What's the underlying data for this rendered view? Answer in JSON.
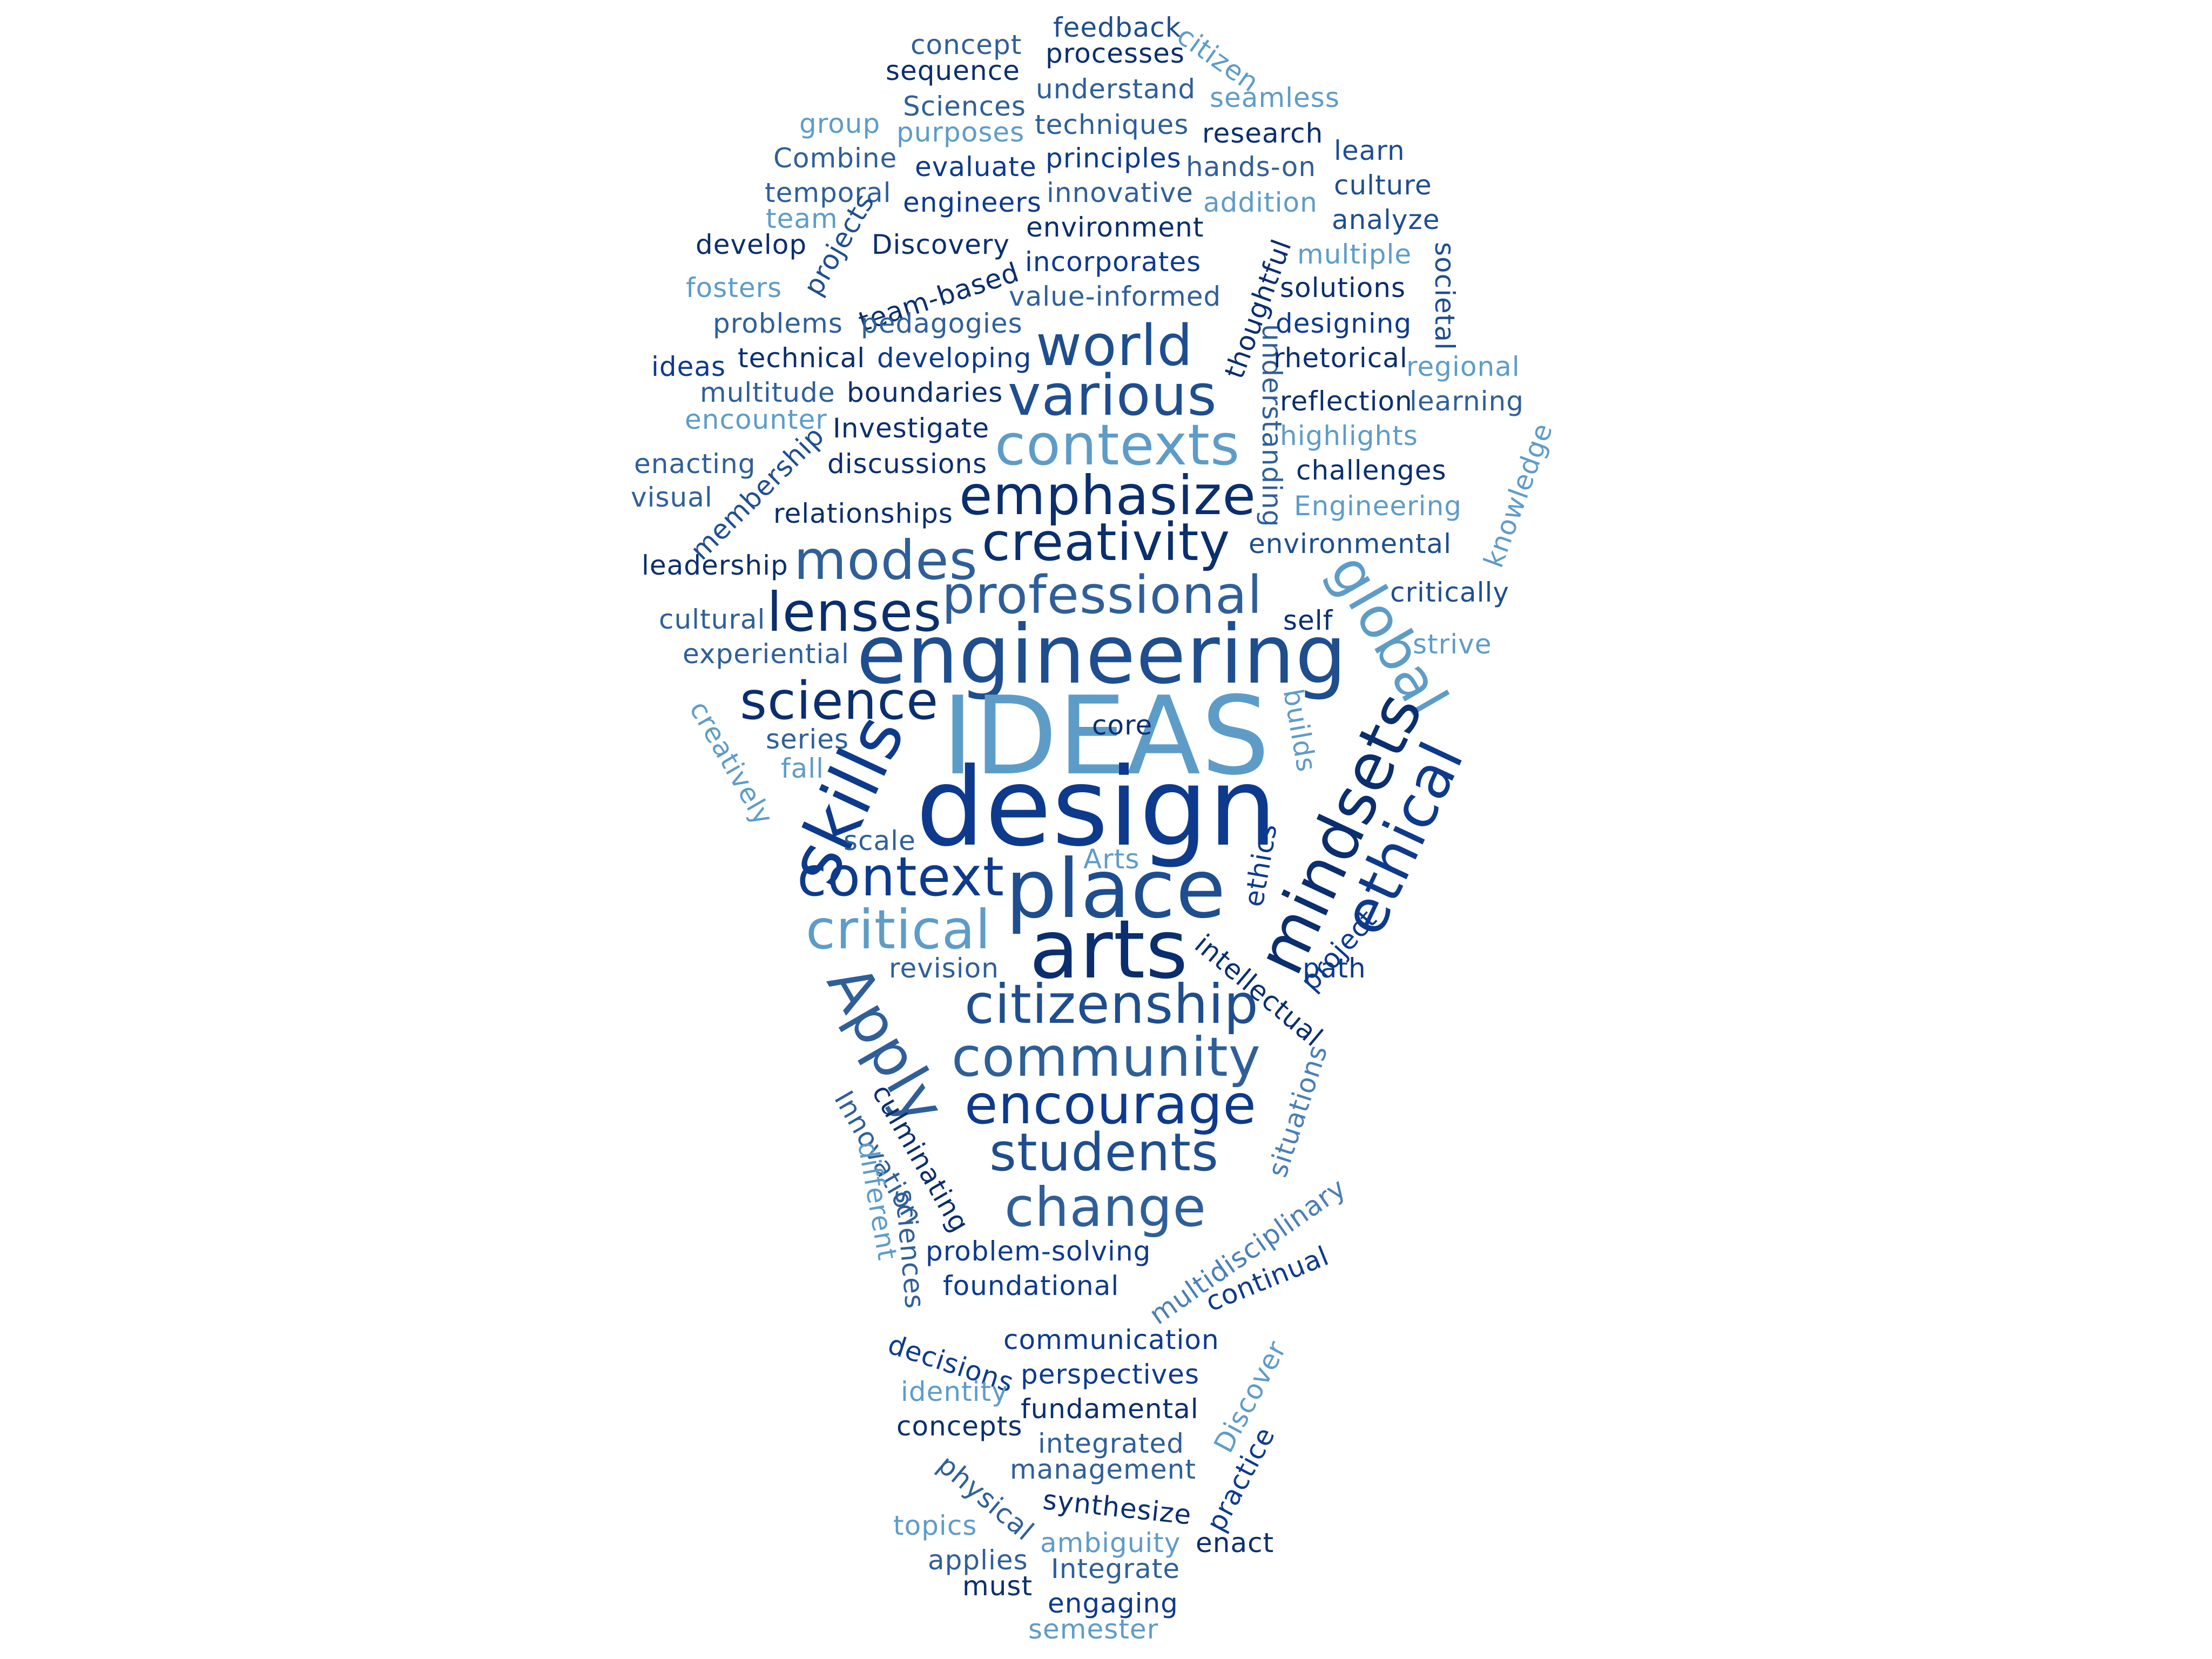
{
  "colors": {
    "c1": "#0a2e6e",
    "c2": "#0d3a8c",
    "c3": "#1f4e8f",
    "c4": "#2f5f99",
    "c5": "#4a7fb5",
    "c6": "#5e9cc8"
  },
  "words": [
    {
      "text": "concept",
      "color": "c4",
      "size": "s"
    },
    {
      "text": "feedback",
      "color": "c3",
      "size": "s"
    },
    {
      "text": "citizen",
      "color": "c6",
      "size": "s"
    },
    {
      "text": "sequence",
      "color": "c1",
      "size": "s"
    },
    {
      "text": "processes",
      "color": "c1",
      "size": "s"
    },
    {
      "text": "understand",
      "color": "c4",
      "size": "s"
    },
    {
      "text": "Sciences",
      "color": "c4",
      "size": "s"
    },
    {
      "text": "seamless",
      "color": "c6",
      "size": "s"
    },
    {
      "text": "group",
      "color": "c6",
      "size": "s"
    },
    {
      "text": "purposes",
      "color": "c6",
      "size": "s"
    },
    {
      "text": "techniques",
      "color": "c4",
      "size": "s"
    },
    {
      "text": "research",
      "color": "c1",
      "size": "s"
    },
    {
      "text": "Combine",
      "color": "c4",
      "size": "s"
    },
    {
      "text": "evaluate",
      "color": "c2",
      "size": "s"
    },
    {
      "text": "principles",
      "color": "c2",
      "size": "s"
    },
    {
      "text": "learn",
      "color": "c3",
      "size": "s"
    },
    {
      "text": "hands-on",
      "color": "c4",
      "size": "s"
    },
    {
      "text": "temporal",
      "color": "c4",
      "size": "s"
    },
    {
      "text": "engineers",
      "color": "c2",
      "size": "s"
    },
    {
      "text": "innovative",
      "color": "c4",
      "size": "s"
    },
    {
      "text": "culture",
      "color": "c3",
      "size": "s"
    },
    {
      "text": "addition",
      "color": "c6",
      "size": "s"
    },
    {
      "text": "team",
      "color": "c6",
      "size": "s"
    },
    {
      "text": "environment",
      "color": "c1",
      "size": "s"
    },
    {
      "text": "analyze",
      "color": "c3",
      "size": "s"
    },
    {
      "text": "develop",
      "color": "c1",
      "size": "s"
    },
    {
      "text": "projects",
      "color": "c3",
      "size": "s"
    },
    {
      "text": "Discovery",
      "color": "c1",
      "size": "s"
    },
    {
      "text": "incorporates",
      "color": "c2",
      "size": "s"
    },
    {
      "text": "multiple",
      "color": "c6",
      "size": "s"
    },
    {
      "text": "fosters",
      "color": "c6",
      "size": "s"
    },
    {
      "text": "team-based",
      "color": "c1",
      "size": "s"
    },
    {
      "text": "value-informed",
      "color": "c4",
      "size": "s"
    },
    {
      "text": "solutions",
      "color": "c1",
      "size": "s"
    },
    {
      "text": "societal",
      "color": "c3",
      "size": "s"
    },
    {
      "text": "thoughtful",
      "color": "c1",
      "size": "s"
    },
    {
      "text": "problems",
      "color": "c4",
      "size": "s"
    },
    {
      "text": "pedagogies",
      "color": "c4",
      "size": "s"
    },
    {
      "text": "designing",
      "color": "c2",
      "size": "s"
    },
    {
      "text": "world",
      "color": "c3",
      "size": "l"
    },
    {
      "text": "understanding",
      "color": "c4",
      "size": "s"
    },
    {
      "text": "ideas",
      "color": "c2",
      "size": "s"
    },
    {
      "text": "technical",
      "color": "c1",
      "size": "s"
    },
    {
      "text": "developing",
      "color": "c2",
      "size": "s"
    },
    {
      "text": "rhetorical",
      "color": "c1",
      "size": "s"
    },
    {
      "text": "regional",
      "color": "c6",
      "size": "s"
    },
    {
      "text": "multitude",
      "color": "c4",
      "size": "s"
    },
    {
      "text": "boundaries",
      "color": "c1",
      "size": "s"
    },
    {
      "text": "various",
      "color": "c3",
      "size": "l"
    },
    {
      "text": "reflection",
      "color": "c1",
      "size": "s"
    },
    {
      "text": "learning",
      "color": "c4",
      "size": "s"
    },
    {
      "text": "encounter",
      "color": "c6",
      "size": "s"
    },
    {
      "text": "Investigate",
      "color": "c1",
      "size": "s"
    },
    {
      "text": "highlights",
      "color": "c6",
      "size": "s"
    },
    {
      "text": "knowledge",
      "color": "c6",
      "size": "s"
    },
    {
      "text": "contexts",
      "color": "c6",
      "size": "l"
    },
    {
      "text": "enacting",
      "color": "c4",
      "size": "s"
    },
    {
      "text": "membership",
      "color": "c3",
      "size": "s"
    },
    {
      "text": "discussions",
      "color": "c1",
      "size": "s"
    },
    {
      "text": "challenges",
      "color": "c1",
      "size": "s"
    },
    {
      "text": "visual",
      "color": "c4",
      "size": "s"
    },
    {
      "text": "emphasize",
      "color": "c1",
      "size": "l"
    },
    {
      "text": "Engineering",
      "color": "c6",
      "size": "s"
    },
    {
      "text": "relationships",
      "color": "c1",
      "size": "s"
    },
    {
      "text": "creativity",
      "color": "c1",
      "size": "l"
    },
    {
      "text": "environmental",
      "color": "c3",
      "size": "s"
    },
    {
      "text": "leadership",
      "color": "c1",
      "size": "s"
    },
    {
      "text": "modes",
      "color": "c4",
      "size": "l"
    },
    {
      "text": "global",
      "color": "c6",
      "size": "l"
    },
    {
      "text": "professional",
      "color": "c4",
      "size": "l"
    },
    {
      "text": "critically",
      "color": "c3",
      "size": "s"
    },
    {
      "text": "cultural",
      "color": "c4",
      "size": "s"
    },
    {
      "text": "lenses",
      "color": "c1",
      "size": "l"
    },
    {
      "text": "self",
      "color": "c1",
      "size": "s"
    },
    {
      "text": "experiential",
      "color": "c4",
      "size": "s"
    },
    {
      "text": "engineering",
      "color": "c3",
      "size": "xl"
    },
    {
      "text": "strive",
      "color": "c6",
      "size": "s"
    },
    {
      "text": "science",
      "color": "c1",
      "size": "l"
    },
    {
      "text": "creatively",
      "color": "c6",
      "size": "s"
    },
    {
      "text": "builds",
      "color": "c6",
      "size": "s"
    },
    {
      "text": "IDEAS",
      "color": "c6",
      "size": "xxl"
    },
    {
      "text": "series",
      "color": "c4",
      "size": "s"
    },
    {
      "text": "core",
      "color": "c1",
      "size": "s"
    },
    {
      "text": "skills",
      "color": "c2",
      "size": "l"
    },
    {
      "text": "fall",
      "color": "c6",
      "size": "s"
    },
    {
      "text": "mindsets",
      "color": "c1",
      "size": "l"
    },
    {
      "text": "design",
      "color": "c2",
      "size": "xxl"
    },
    {
      "text": "ethical",
      "color": "c2",
      "size": "l"
    },
    {
      "text": "scale",
      "color": "c4",
      "size": "s"
    },
    {
      "text": "ethics",
      "color": "c2",
      "size": "s"
    },
    {
      "text": "Arts",
      "color": "c6",
      "size": "s"
    },
    {
      "text": "context",
      "color": "c2",
      "size": "l"
    },
    {
      "text": "place",
      "color": "c3",
      "size": "xl"
    },
    {
      "text": "project",
      "color": "c2",
      "size": "l"
    },
    {
      "text": "critical",
      "color": "c6",
      "size": "s"
    },
    {
      "text": "arts",
      "color": "c1",
      "size": "xl"
    },
    {
      "text": "intellectual",
      "color": "c1",
      "size": "s"
    },
    {
      "text": "revision",
      "color": "c4",
      "size": "s"
    },
    {
      "text": "path",
      "color": "c2",
      "size": "s"
    },
    {
      "text": "Apply",
      "color": "c4",
      "size": "l"
    },
    {
      "text": "citizenship",
      "color": "c3",
      "size": "l"
    },
    {
      "text": "community",
      "color": "c4",
      "size": "l"
    },
    {
      "text": "situations",
      "color": "c5",
      "size": "s"
    },
    {
      "text": "encourage",
      "color": "c2",
      "size": "l"
    },
    {
      "text": "Innovation",
      "color": "c4",
      "size": "s"
    },
    {
      "text": "culminating",
      "color": "c1",
      "size": "s"
    },
    {
      "text": "different",
      "color": "c6",
      "size": "s"
    },
    {
      "text": "students",
      "color": "c3",
      "size": "l"
    },
    {
      "text": "multidisciplinary",
      "color": "c5",
      "size": "s"
    },
    {
      "text": "sciences",
      "color": "c4",
      "size": "s"
    },
    {
      "text": "change",
      "color": "c4",
      "size": "l"
    },
    {
      "text": "continual",
      "color": "c2",
      "size": "s"
    },
    {
      "text": "problem-solving",
      "color": "c2",
      "size": "s"
    },
    {
      "text": "foundational",
      "color": "c2",
      "size": "s"
    },
    {
      "text": "communication",
      "color": "c2",
      "size": "s"
    },
    {
      "text": "decisions",
      "color": "c2",
      "size": "s"
    },
    {
      "text": "Discover",
      "color": "c6",
      "size": "s"
    },
    {
      "text": "perspectives",
      "color": "c2",
      "size": "s"
    },
    {
      "text": "identity",
      "color": "c6",
      "size": "s"
    },
    {
      "text": "fundamental",
      "color": "c1",
      "size": "s"
    },
    {
      "text": "concepts",
      "color": "c1",
      "size": "s"
    },
    {
      "text": "integrated",
      "color": "c4",
      "size": "s"
    },
    {
      "text": "practice",
      "color": "c2",
      "size": "s"
    },
    {
      "text": "management",
      "color": "c4",
      "size": "s"
    },
    {
      "text": "physical",
      "color": "c4",
      "size": "s"
    },
    {
      "text": "synthesize",
      "color": "c1",
      "size": "s"
    },
    {
      "text": "topics",
      "color": "c6",
      "size": "s"
    },
    {
      "text": "ambiguity",
      "color": "c6",
      "size": "s"
    },
    {
      "text": "enact",
      "color": "c1",
      "size": "s"
    },
    {
      "text": "applies",
      "color": "c4",
      "size": "s"
    },
    {
      "text": "Integrate",
      "color": "c4",
      "size": "s"
    },
    {
      "text": "must",
      "color": "c1",
      "size": "s"
    },
    {
      "text": "engaging",
      "color": "c2",
      "size": "s"
    },
    {
      "text": "semester",
      "color": "c6",
      "size": "s"
    }
  ]
}
